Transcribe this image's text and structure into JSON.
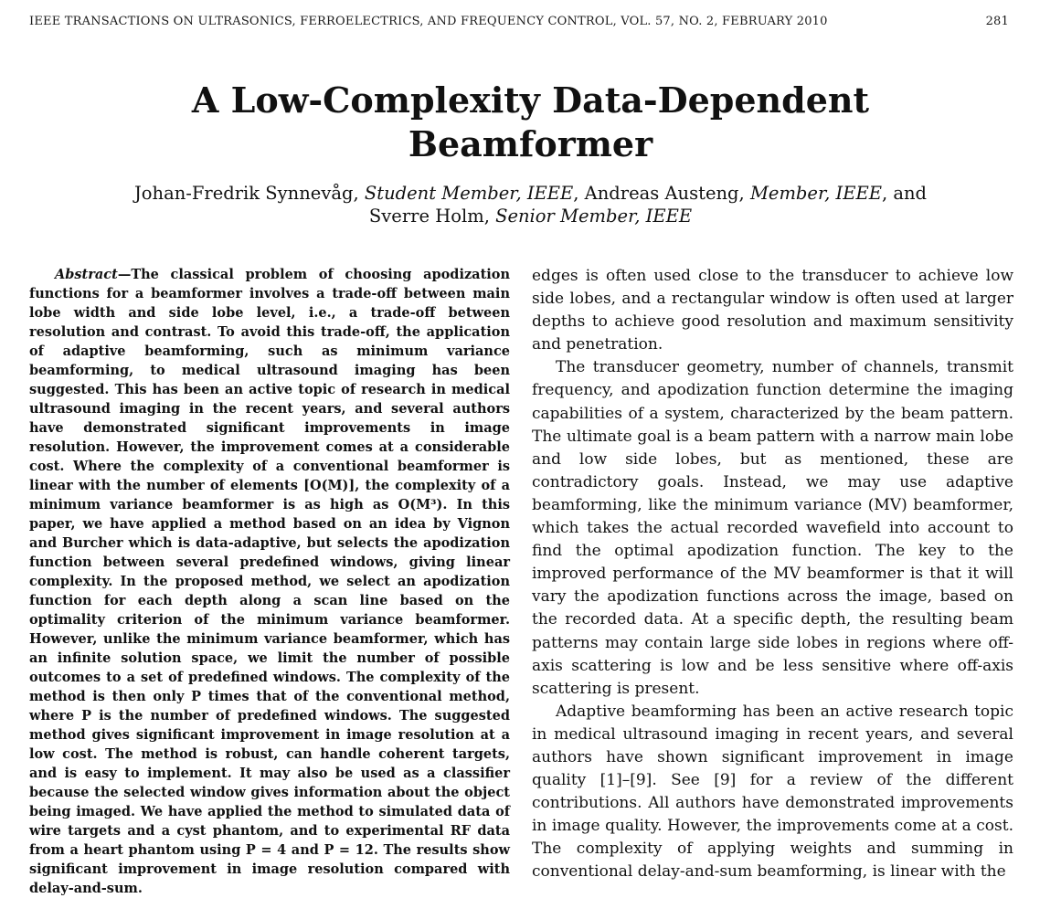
{
  "header": {
    "journal": "IEEE TRANSACTIONS ON ULTRASONICS, FERROELECTRICS, AND FREQUENCY CONTROL, VOL. 57, NO. 2, FEBRUARY 2010",
    "page_number": "281"
  },
  "title": "A Low-Complexity Data-Dependent Beamformer",
  "authors": {
    "a1_name": "Johan-Fredrik Synnevåg,",
    "a1_role": "Student Member, IEEE",
    "a2_name": ", Andreas Austeng,",
    "a2_role": "Member, IEEE",
    "a3_name": ", and Sverre Holm,",
    "a3_role": "Senior Member, IEEE"
  },
  "abstract": {
    "label": "Abstract",
    "text": "—The classical problem of choosing apodization functions for a beamformer involves a trade-off between main lobe width and side lobe level, i.e., a trade-off between resolution and contrast. To avoid this trade-off, the application of adaptive beamforming, such as minimum variance beamforming, to medical ultrasound imaging has been suggested. This has been an active topic of research in medical ultrasound imaging in the recent years, and several authors have demonstrated significant improvements in image resolution. However, the improvement comes at a considerable cost. Where the complexity of a conventional beamformer is linear with the number of elements [O(M)], the complexity of a minimum variance beamformer is as high as O(M³). In this paper, we have applied a method based on an idea by Vignon and Burcher which is data-adaptive, but selects the apodization function between several predefined windows, giving linear complexity. In the proposed method, we select an apodization function for each depth along a scan line based on the optimality criterion of the minimum variance beamformer. However, unlike the minimum variance beamformer, which has an infinite solution space, we limit the number of possible outcomes to a set of predefined windows. The complexity of the method is then only P times that of the conventional method, where P is the number of predefined windows. The suggested method gives significant improvement in image resolution at a low cost. The method is robust, can handle coherent targets, and is easy to implement. It may also be used as a classifier because the selected window gives information about the object being imaged. We have applied the method to simulated data of wire targets and a cyst phantom, and to experimental RF data from a heart phantom using P = 4 and P = 12. The results show significant improvement in image resolution compared with delay-and-sum."
  },
  "body": {
    "p1": "edges is often used close to the transducer to achieve low side lobes, and a rectangular window is often used at larger depths to achieve good resolution and maximum sensitivity and penetration.",
    "p2": "The transducer geometry, number of channels, transmit frequency, and apodization function determine the imaging capabilities of a system, characterized by the beam pattern. The ultimate goal is a beam pattern with a narrow main lobe and low side lobes, but as mentioned, these are contradictory goals. Instead, we may use adaptive beamforming, like the minimum variance (MV) beamformer, which takes the actual recorded wavefield into account to find the optimal apodization function. The key to the improved performance of the MV beamformer is that it will vary the apodization functions across the image, based on the recorded data. At a specific depth, the resulting beam patterns may contain large side lobes in regions where off-axis scattering is low and be less sensitive where off-axis scattering is present.",
    "p3": "Adaptive beamforming has been an active research topic in medical ultrasound imaging in recent years, and several authors have shown significant improvement in image quality [1]–[9]. See [9] for a review of the different contributions. All authors have demonstrated improvements in image quality. However, the improvements come at a cost. The complexity of applying weights and summing in conventional delay-and-sum beamforming, is linear with the"
  }
}
